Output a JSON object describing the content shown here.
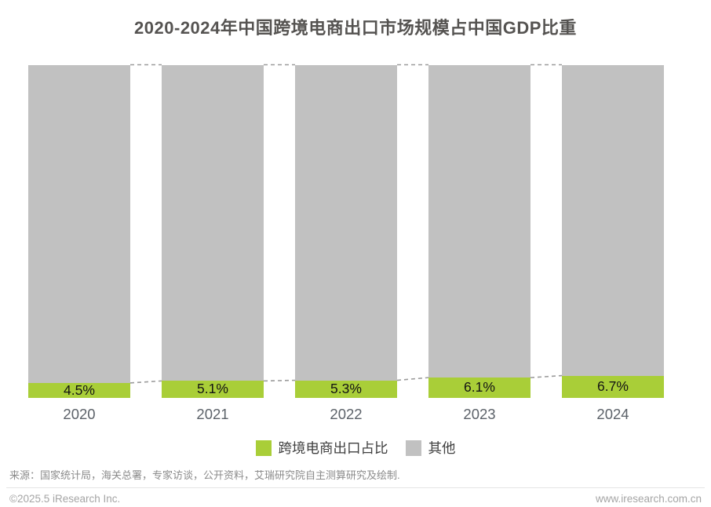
{
  "chart_data": {
    "type": "bar",
    "stacked": true,
    "title": "2020-2024年中国跨境电商出口市场规模占中国GDP比重",
    "categories": [
      "2020",
      "2021",
      "2022",
      "2023",
      "2024"
    ],
    "series": [
      {
        "name": "跨境电商出口占比",
        "values": [
          4.5,
          5.1,
          5.3,
          6.1,
          6.7
        ],
        "color": "#a9ce38"
      },
      {
        "name": "其他",
        "values": [
          95.5,
          94.9,
          94.7,
          93.9,
          93.3
        ],
        "color": "#c1c1c1"
      }
    ],
    "value_labels": [
      "4.5%",
      "5.1%",
      "5.3%",
      "6.1%",
      "6.7%"
    ],
    "ylim": [
      0,
      100
    ],
    "unit": "percent of GDP",
    "grid": false,
    "legend_position": "bottom",
    "connector_line_color": "#9b9b9b"
  },
  "legend": {
    "items": [
      {
        "label": "跨境电商出口占比",
        "color": "#a9ce38"
      },
      {
        "label": "其他",
        "color": "#c1c1c1"
      }
    ]
  },
  "source": {
    "text": "来源：国家统计局，海关总署，专家访谈，公开资料，艾瑞研究院自主测算研究及绘制."
  },
  "footer": {
    "copyright": "©2025.5 iResearch Inc.",
    "website": "www.iresearch.com.cn"
  }
}
